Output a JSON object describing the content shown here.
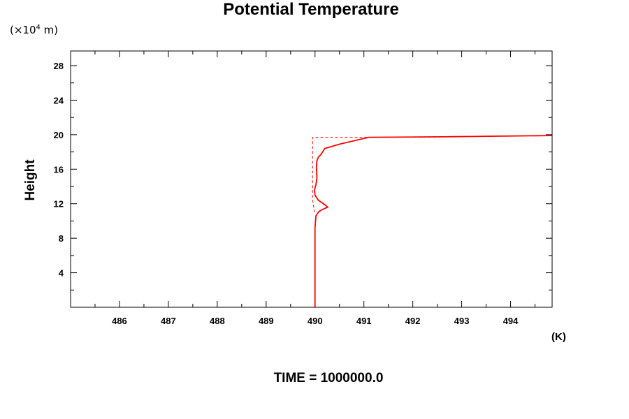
{
  "chart_data": {
    "type": "line",
    "title": "Potential Temperature",
    "ylabel": "Height",
    "yunit_prefix": "(×10",
    "yunit_exp": "4",
    "yunit_suffix": " m)",
    "xunit": "(K)",
    "footer": "TIME = 1000000.0",
    "xlim": [
      485,
      494.85
    ],
    "ylim": [
      0,
      29.7
    ],
    "xticks": [
      486,
      487,
      488,
      489,
      490,
      491,
      492,
      493,
      494
    ],
    "yticks": [
      4,
      8,
      12,
      16,
      20,
      24,
      28
    ],
    "series": [
      {
        "style": "solid",
        "color": "#ff0000",
        "x": [
          490.0,
          490.0,
          490.0,
          490.02,
          490.08,
          490.18,
          490.26,
          490.2,
          490.07,
          490.0,
          489.99,
          490.02,
          490.04,
          490.03,
          490.04,
          490.07,
          490.12,
          490.2,
          490.5,
          491.1,
          492.5,
          494.85
        ],
        "y": [
          0,
          5,
          9.2,
          10.6,
          11.1,
          11.4,
          11.6,
          11.9,
          12.4,
          13.0,
          13.6,
          14.2,
          15.0,
          16.2,
          17.0,
          17.4,
          17.7,
          18.4,
          18.9,
          19.7,
          19.75,
          19.9
        ]
      },
      {
        "style": "dashed",
        "color": "#ff0000",
        "x": [
          489.99,
          489.95,
          489.95,
          491.0,
          494.85
        ],
        "y": [
          11.0,
          12.5,
          19.7,
          19.7,
          19.9
        ]
      }
    ]
  }
}
